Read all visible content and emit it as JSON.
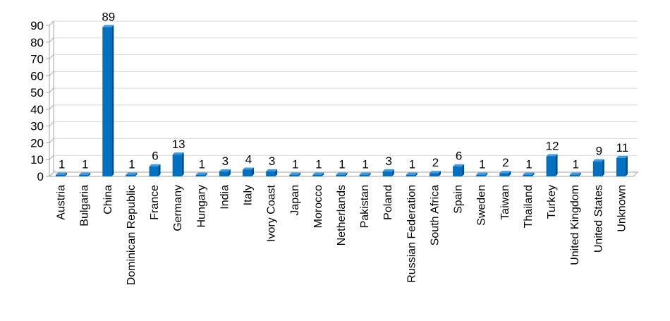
{
  "chart_data": {
    "type": "bar",
    "title": "",
    "xlabel": "",
    "ylabel": "",
    "ylim": [
      0,
      90
    ],
    "ytick_step": 10,
    "yticks": [
      "0",
      "10",
      "20",
      "30",
      "40",
      "50",
      "60",
      "70",
      "80",
      "90"
    ],
    "grid": true,
    "legend": "none",
    "bar_style": "3d",
    "colors": {
      "bar": "#0070C0",
      "bar_side": "#004E88",
      "bar_top": "#3C9AE0",
      "grid": "#D9D9D9",
      "axis": "#A6A6A6",
      "text": "#000000"
    },
    "categories": [
      "Austria",
      "Bulgaria",
      "China",
      "Dominican Republic",
      "France",
      "Germany",
      "Hungary",
      "India",
      "Italy",
      "Ivory Coast",
      "Japan",
      "Morocco",
      "Netherlands",
      "Pakistan",
      "Poland",
      "Russian Federation",
      "South Africa",
      "Spain",
      "Sweden",
      "Taiwan",
      "Thailand",
      "Turkey",
      "United Kingdom",
      "United States",
      "Unknown"
    ],
    "values": [
      1,
      1,
      89,
      1,
      6,
      13,
      1,
      3,
      4,
      3,
      1,
      1,
      1,
      1,
      3,
      1,
      2,
      6,
      1,
      2,
      1,
      12,
      1,
      9,
      11
    ],
    "data_labels": [
      "1",
      "1",
      "89",
      "1",
      "6",
      "13",
      "1",
      "3",
      "4",
      "3",
      "1",
      "1",
      "1",
      "1",
      "3",
      "1",
      "2",
      "6",
      "1",
      "2",
      "1",
      "12",
      "1",
      "9",
      "11"
    ]
  }
}
